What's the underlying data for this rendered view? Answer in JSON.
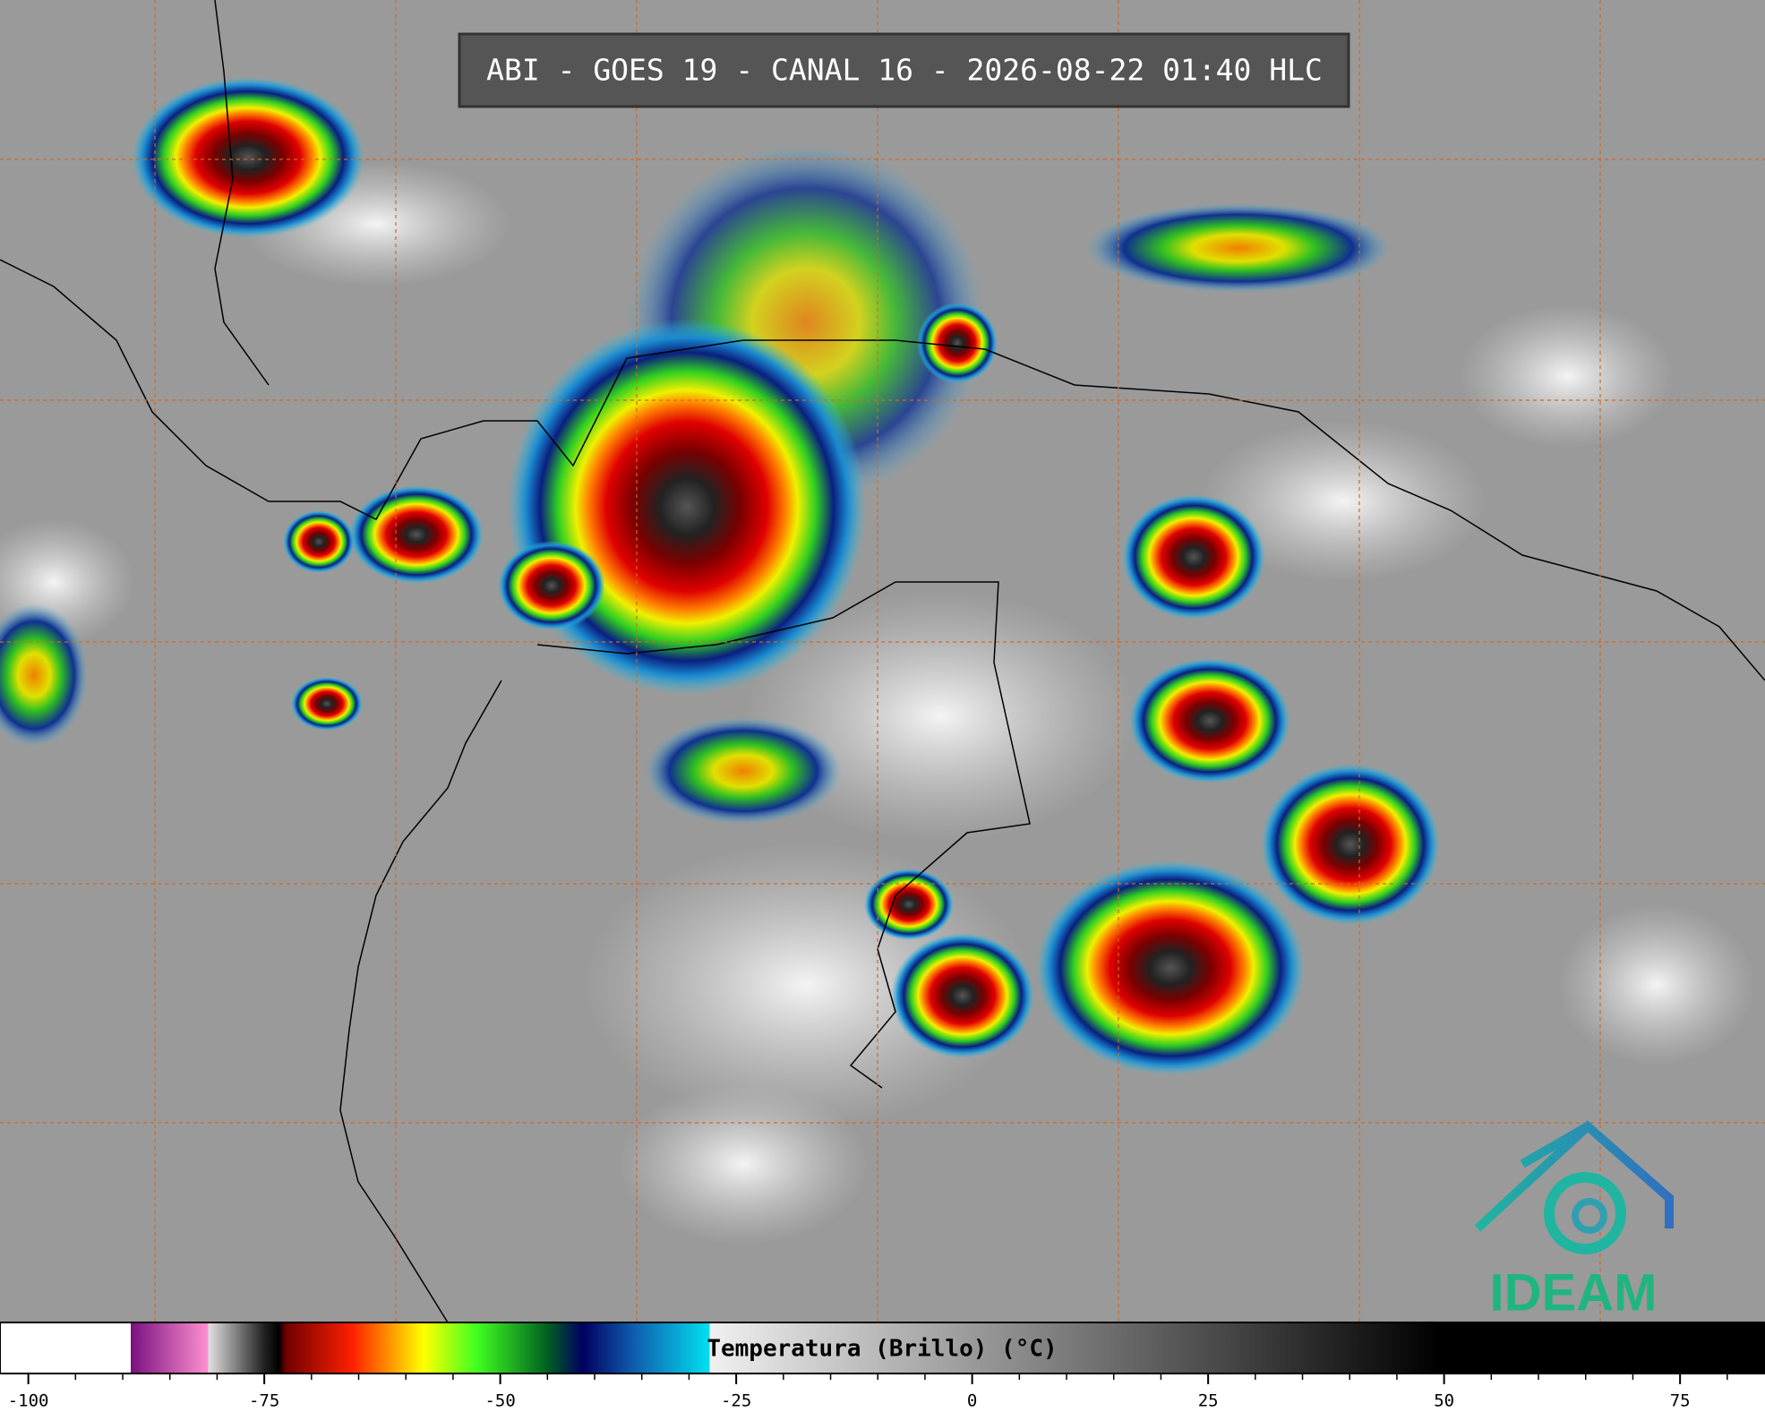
{
  "header": {
    "title": "ABI - GOES 19 - CANAL 16 - 2026-08-22 01:40 HLC"
  },
  "logo": {
    "text": "IDEAM"
  },
  "colorbar": {
    "label": "Temperatura (Brillo) (°C)",
    "lim": [
      -103,
      84
    ],
    "ticks": [
      -100,
      -75,
      -50,
      -25,
      0,
      25,
      50,
      75
    ],
    "minor_ticks": [
      -95,
      -90,
      -85,
      -80,
      -70,
      -65,
      -60,
      -55,
      -45,
      -40,
      -35,
      -30,
      -20,
      -15,
      -10,
      -5,
      5,
      10,
      15,
      20,
      30,
      35,
      40,
      45,
      55,
      60,
      65,
      70,
      80
    ]
  }
}
